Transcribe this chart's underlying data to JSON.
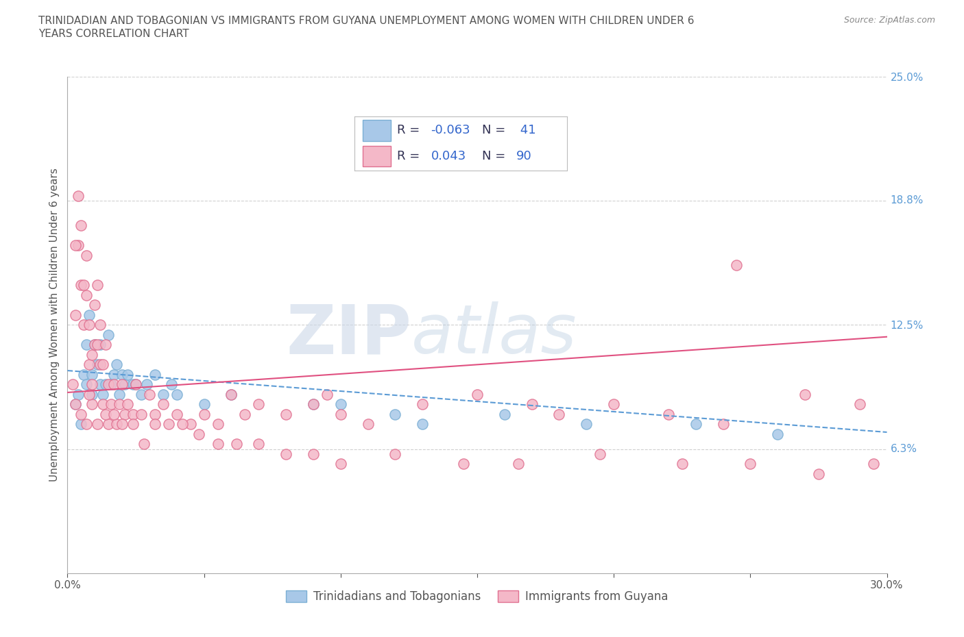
{
  "title_line1": "TRINIDADIAN AND TOBAGONIAN VS IMMIGRANTS FROM GUYANA UNEMPLOYMENT AMONG WOMEN WITH CHILDREN UNDER 6",
  "title_line2": "YEARS CORRELATION CHART",
  "source_text": "Source: ZipAtlas.com",
  "ylabel": "Unemployment Among Women with Children Under 6 years",
  "x_min": 0.0,
  "x_max": 0.3,
  "y_min": 0.0,
  "y_max": 0.25,
  "x_ticks": [
    0.0,
    0.05,
    0.1,
    0.15,
    0.2,
    0.25,
    0.3
  ],
  "x_tick_labels": [
    "0.0%",
    "",
    "",
    "",
    "",
    "",
    "30.0%"
  ],
  "y_tick_labels_right": [
    "6.3%",
    "12.5%",
    "18.8%",
    "25.0%"
  ],
  "y_tick_vals_right": [
    0.063,
    0.125,
    0.188,
    0.25
  ],
  "grid_color": "#d0d0d0",
  "background_color": "#ffffff",
  "blue_color": "#a8c8e8",
  "blue_edge_color": "#7bafd4",
  "pink_color": "#f4b8c8",
  "pink_edge_color": "#e07090",
  "blue_line_color": "#5b9bd5",
  "pink_line_color": "#e05080",
  "blue_R": -0.063,
  "blue_N": 41,
  "pink_R": 0.043,
  "pink_N": 90,
  "blue_scatter_x": [
    0.003,
    0.004,
    0.005,
    0.006,
    0.007,
    0.007,
    0.008,
    0.009,
    0.009,
    0.01,
    0.011,
    0.012,
    0.012,
    0.013,
    0.014,
    0.015,
    0.016,
    0.017,
    0.018,
    0.019,
    0.02,
    0.021,
    0.022,
    0.024,
    0.025,
    0.027,
    0.029,
    0.032,
    0.035,
    0.038,
    0.04,
    0.05,
    0.06,
    0.09,
    0.1,
    0.12,
    0.13,
    0.16,
    0.19,
    0.23,
    0.26
  ],
  "blue_scatter_y": [
    0.085,
    0.09,
    0.075,
    0.1,
    0.115,
    0.095,
    0.13,
    0.1,
    0.09,
    0.115,
    0.105,
    0.095,
    0.115,
    0.09,
    0.095,
    0.12,
    0.095,
    0.1,
    0.105,
    0.09,
    0.1,
    0.095,
    0.1,
    0.095,
    0.095,
    0.09,
    0.095,
    0.1,
    0.09,
    0.095,
    0.09,
    0.085,
    0.09,
    0.085,
    0.085,
    0.08,
    0.075,
    0.08,
    0.075,
    0.075,
    0.07
  ],
  "pink_scatter_x": [
    0.002,
    0.003,
    0.004,
    0.004,
    0.005,
    0.005,
    0.006,
    0.006,
    0.007,
    0.007,
    0.008,
    0.008,
    0.009,
    0.009,
    0.01,
    0.01,
    0.011,
    0.011,
    0.012,
    0.012,
    0.013,
    0.013,
    0.014,
    0.015,
    0.015,
    0.016,
    0.017,
    0.018,
    0.019,
    0.02,
    0.021,
    0.022,
    0.024,
    0.025,
    0.027,
    0.03,
    0.032,
    0.035,
    0.04,
    0.045,
    0.05,
    0.055,
    0.06,
    0.065,
    0.07,
    0.08,
    0.09,
    0.095,
    0.1,
    0.11,
    0.13,
    0.15,
    0.17,
    0.18,
    0.2,
    0.22,
    0.24,
    0.245,
    0.27,
    0.29,
    0.003,
    0.005,
    0.007,
    0.009,
    0.011,
    0.014,
    0.017,
    0.02,
    0.024,
    0.028,
    0.032,
    0.037,
    0.042,
    0.048,
    0.055,
    0.062,
    0.07,
    0.08,
    0.09,
    0.1,
    0.12,
    0.145,
    0.165,
    0.195,
    0.225,
    0.25,
    0.275,
    0.295,
    0.003,
    0.008
  ],
  "pink_scatter_y": [
    0.095,
    0.13,
    0.165,
    0.19,
    0.145,
    0.175,
    0.125,
    0.145,
    0.16,
    0.14,
    0.105,
    0.125,
    0.11,
    0.095,
    0.135,
    0.115,
    0.145,
    0.115,
    0.105,
    0.125,
    0.085,
    0.105,
    0.115,
    0.075,
    0.095,
    0.085,
    0.095,
    0.075,
    0.085,
    0.095,
    0.08,
    0.085,
    0.08,
    0.095,
    0.08,
    0.09,
    0.08,
    0.085,
    0.08,
    0.075,
    0.08,
    0.075,
    0.09,
    0.08,
    0.085,
    0.08,
    0.085,
    0.09,
    0.08,
    0.075,
    0.085,
    0.09,
    0.085,
    0.08,
    0.085,
    0.08,
    0.075,
    0.155,
    0.09,
    0.085,
    0.085,
    0.08,
    0.075,
    0.085,
    0.075,
    0.08,
    0.08,
    0.075,
    0.075,
    0.065,
    0.075,
    0.075,
    0.075,
    0.07,
    0.065,
    0.065,
    0.065,
    0.06,
    0.06,
    0.055,
    0.06,
    0.055,
    0.055,
    0.06,
    0.055,
    0.055,
    0.05,
    0.055,
    0.165,
    0.09
  ],
  "blue_line_x": [
    0.0,
    0.3
  ],
  "blue_line_y": [
    0.102,
    0.071
  ],
  "pink_line_x": [
    0.0,
    0.3
  ],
  "pink_line_y": [
    0.091,
    0.119
  ],
  "bottom_legend_blue": "Trinidadians and Tobagonians",
  "bottom_legend_pink": "Immigrants from Guyana",
  "title_fontsize": 11,
  "axis_label_fontsize": 11,
  "tick_fontsize": 11,
  "right_tick_color": "#5b9bd5",
  "text_color": "#555555"
}
